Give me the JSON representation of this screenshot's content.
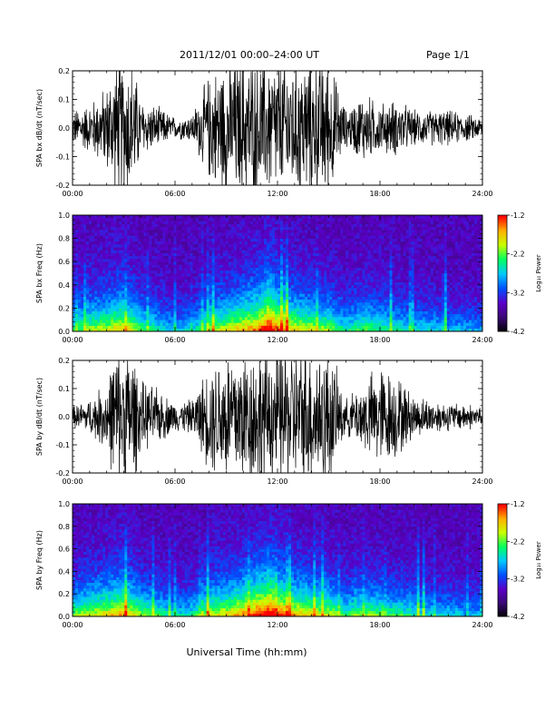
{
  "header": {
    "title": "2011/12/01  00:00–24:00 UT",
    "page": "Page 1/1"
  },
  "colors": {
    "trace": "#000000",
    "colormap": [
      "#000000",
      "#3a0a73",
      "#5a00c8",
      "#0050ff",
      "#00c8ff",
      "#00ff60",
      "#c8ff00",
      "#ffb000",
      "#ff0000"
    ]
  },
  "chart_data": [
    {
      "type": "line",
      "panel": "SPA bx dB/dt waveform",
      "ylabel": "SPA bx dB/dt (nT/sec)",
      "ylim": [
        -0.2,
        0.2
      ],
      "yticks": [
        "0.2",
        "0.1",
        "0.0",
        "-0.1",
        "-0.2"
      ],
      "xlim_hours": [
        0,
        24
      ],
      "xticks": [
        "00:00",
        "06:00",
        "12:00",
        "18:00",
        "24:00"
      ],
      "envelope": {
        "hours": [
          0,
          1,
          2,
          2.5,
          3.0,
          3.5,
          4,
          5,
          6,
          7,
          8,
          9,
          10,
          11,
          12,
          13,
          14,
          15,
          16,
          17,
          18,
          19,
          20,
          21,
          22,
          23,
          24
        ],
        "amplitude": [
          0.05,
          0.07,
          0.12,
          0.2,
          0.2,
          0.2,
          0.08,
          0.06,
          0.03,
          0.04,
          0.15,
          0.2,
          0.2,
          0.2,
          0.2,
          0.2,
          0.2,
          0.2,
          0.05,
          0.1,
          0.07,
          0.08,
          0.05,
          0.05,
          0.05,
          0.04,
          0.03
        ]
      }
    },
    {
      "type": "heatmap",
      "panel": "SPA bx frequency spectrogram",
      "ylabel": "SPA bx Freq (Hz)",
      "ylim": [
        0.0,
        1.0
      ],
      "yticks": [
        "1.0",
        "0.8",
        "0.6",
        "0.4",
        "0.2",
        "0.0"
      ],
      "xlim_hours": [
        0,
        24
      ],
      "xticks": [
        "00:00",
        "06:00",
        "12:00",
        "18:00",
        "24:00"
      ],
      "colorbar": {
        "label": "Log₁₀ Power",
        "range": [
          -4.2,
          -1.2
        ],
        "ticks": [
          "-1.2",
          "-2.2",
          "-3.2",
          "-4.2"
        ]
      },
      "activity": {
        "hours": [
          0,
          1,
          2,
          3,
          4,
          5,
          6,
          7,
          8,
          9,
          10,
          11,
          11.5,
          12,
          13,
          14,
          15,
          16,
          17,
          18,
          19,
          20,
          21,
          22,
          23,
          24
        ],
        "level": [
          0.45,
          0.55,
          0.6,
          0.7,
          0.5,
          0.4,
          0.3,
          0.35,
          0.55,
          0.6,
          0.7,
          0.8,
          0.95,
          0.8,
          0.65,
          0.6,
          0.55,
          0.4,
          0.5,
          0.45,
          0.4,
          0.35,
          0.35,
          0.3,
          0.3,
          0.25
        ]
      }
    },
    {
      "type": "line",
      "panel": "SPA by dB/dt waveform",
      "ylabel": "SPA by dB/dt (nT/sec)",
      "ylim": [
        -0.2,
        0.2
      ],
      "yticks": [
        "0.2",
        "0.1",
        "0.0",
        "-0.1",
        "-0.2"
      ],
      "xlim_hours": [
        0,
        24
      ],
      "xticks": [
        "00:00",
        "06:00",
        "12:00",
        "18:00",
        "24:00"
      ],
      "envelope": {
        "hours": [
          0,
          1,
          2,
          2.5,
          3.0,
          3.5,
          4,
          5,
          6,
          7,
          8,
          9,
          10,
          11,
          12,
          13,
          14,
          15,
          16,
          17,
          18,
          19,
          20,
          21,
          22,
          23,
          24
        ],
        "amplitude": [
          0.03,
          0.05,
          0.1,
          0.2,
          0.2,
          0.2,
          0.1,
          0.08,
          0.04,
          0.05,
          0.15,
          0.2,
          0.2,
          0.2,
          0.2,
          0.2,
          0.2,
          0.2,
          0.05,
          0.1,
          0.15,
          0.12,
          0.06,
          0.05,
          0.04,
          0.04,
          0.03
        ]
      }
    },
    {
      "type": "heatmap",
      "panel": "SPA by frequency spectrogram",
      "ylabel": "SPA by Freq (Hz)",
      "ylim": [
        0.0,
        1.0
      ],
      "yticks": [
        "1.0",
        "0.8",
        "0.6",
        "0.4",
        "0.2",
        "0.0"
      ],
      "xlim_hours": [
        0,
        24
      ],
      "xticks": [
        "00:00",
        "06:00",
        "12:00",
        "18:00",
        "24:00"
      ],
      "colorbar": {
        "label": "Log₁₀ Power",
        "range": [
          -4.2,
          -1.2
        ],
        "ticks": [
          "-1.2",
          "-2.2",
          "-3.2",
          "-4.2"
        ]
      },
      "activity": {
        "hours": [
          0,
          1,
          2,
          3,
          4,
          5,
          6,
          7,
          8,
          9,
          10,
          11,
          11.5,
          12,
          13,
          14,
          15,
          16,
          17,
          18,
          19,
          20,
          21,
          22,
          23,
          24
        ],
        "level": [
          0.5,
          0.6,
          0.65,
          0.75,
          0.55,
          0.45,
          0.35,
          0.4,
          0.6,
          0.65,
          0.75,
          0.85,
          0.95,
          0.85,
          0.7,
          0.65,
          0.6,
          0.45,
          0.55,
          0.5,
          0.45,
          0.4,
          0.35,
          0.35,
          0.3,
          0.3
        ]
      }
    }
  ],
  "xlabel": "Universal Time (hh:mm)"
}
